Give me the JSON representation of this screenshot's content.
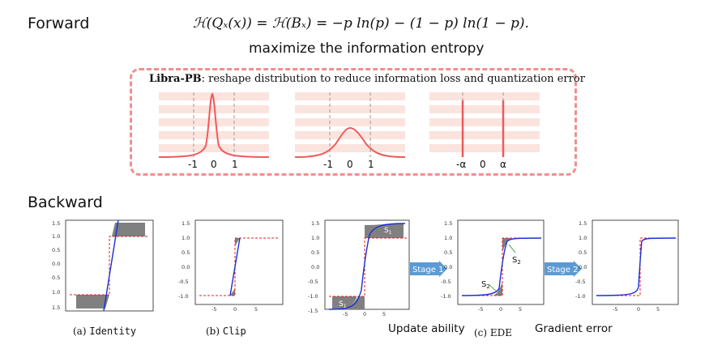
{
  "forward": {
    "title": "Forward",
    "formula": "ℋ(Qₓ(x)) = ℋ(Bₓ) = −p ln(p) − (1 − p) ln(1 − p).",
    "subtitle": "maximize the information entropy"
  },
  "libra": {
    "name": "Libra-PB",
    "description": ": reshape distribution to reduce information loss and quantization error",
    "plots": [
      {
        "labels": [
          "-1",
          "0",
          "1"
        ]
      },
      {
        "labels": [
          "-1",
          "0",
          "1"
        ]
      },
      {
        "labels": [
          "-α",
          "0",
          "α"
        ]
      }
    ]
  },
  "backward": {
    "title": "Backward",
    "captions": {
      "identity_prefix": "(a) ",
      "identity_mono": "Identity",
      "clip_prefix": "(b) ",
      "clip_mono": "Clip",
      "ede": "(c) EDE"
    },
    "notes": {
      "update_ability": "Update ability",
      "gradient_error": "Gradient error"
    },
    "stages": [
      "Stage 1",
      "Stage 2"
    ],
    "s1": "S",
    "s2": "S",
    "sub1": "1",
    "sub2": "2",
    "y_ticks": [
      "1.5",
      "1.0",
      "0.5",
      "0.0",
      "-0.5",
      "-1.0",
      "-1.5"
    ],
    "y_ticks_identity": [
      "1.5",
      "1.0",
      "0.5",
      "0.0",
      "0.5",
      "1.0",
      "1.5"
    ],
    "x_ticks": [
      "-5",
      "0",
      "5"
    ]
  },
  "colors": {
    "pink_dash": "#f08f8f",
    "curve_red": "#f05a5a",
    "band_fill": "#fbe4de",
    "blue": "#1a2fd6",
    "gray_fill": "#808080",
    "arrow_blue": "#5b9bd5"
  }
}
